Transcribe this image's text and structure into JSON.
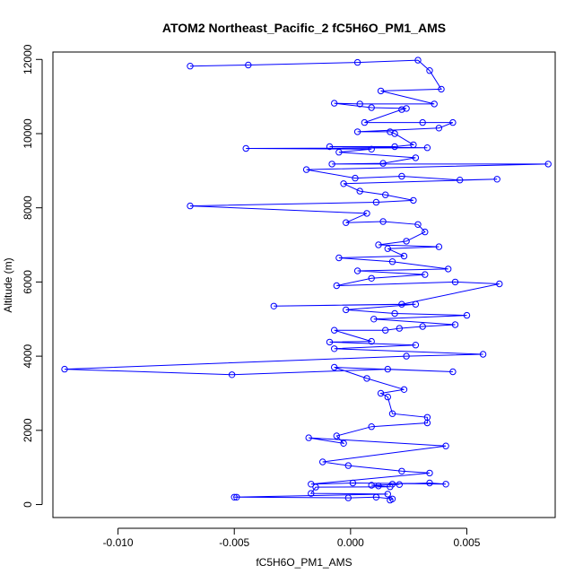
{
  "chart_data": {
    "type": "line",
    "title": "ATOM2 Northeast_Pacific_2 fC5H6O_PM1_AMS",
    "xlabel": "fC5H6O_PM1_AMS",
    "ylabel": "Altitude (m)",
    "xlim": [
      -0.0128,
      0.0088
    ],
    "ylim": [
      -350,
      12200
    ],
    "x_ticks": [
      -0.01,
      -0.005,
      0.0,
      0.005
    ],
    "x_tick_labels": [
      "-0.010",
      "-0.005",
      "0.000",
      "0.005"
    ],
    "y_ticks": [
      0,
      2000,
      4000,
      6000,
      8000,
      10000,
      12000
    ],
    "y_tick_labels": [
      "0",
      "2000",
      "4000",
      "6000",
      "8000",
      "10000",
      "12000"
    ],
    "grid": false,
    "legend": "none",
    "marker": "open-circle",
    "color": "#0000ff",
    "series": [
      {
        "points": [
          [
            -0.0069,
            11820
          ],
          [
            -0.0044,
            11850
          ],
          [
            0.0003,
            11920
          ],
          [
            0.0029,
            11980
          ],
          [
            0.0034,
            11700
          ],
          [
            0.0039,
            11200
          ],
          [
            0.0013,
            11150
          ],
          [
            0.0036,
            10800
          ],
          [
            0.0004,
            10800
          ],
          [
            -0.0007,
            10820
          ],
          [
            0.0009,
            10700
          ],
          [
            0.0024,
            10680
          ],
          [
            0.0022,
            10650
          ],
          [
            0.0006,
            10300
          ],
          [
            0.0031,
            10300
          ],
          [
            0.0044,
            10300
          ],
          [
            0.0038,
            10150
          ],
          [
            0.0003,
            10050
          ],
          [
            0.0017,
            10050
          ],
          [
            0.0019,
            10000
          ],
          [
            0.0027,
            9700
          ],
          [
            0.0019,
            9650
          ],
          [
            -0.0009,
            9650
          ],
          [
            0.0033,
            9620
          ],
          [
            -0.0045,
            9600
          ],
          [
            0.0009,
            9580
          ],
          [
            -0.0005,
            9500
          ],
          [
            0.0028,
            9350
          ],
          [
            0.0014,
            9200
          ],
          [
            -0.0008,
            9180
          ],
          [
            0.0085,
            9180
          ],
          [
            -0.0019,
            9030
          ],
          [
            0.0002,
            8800
          ],
          [
            0.0022,
            8850
          ],
          [
            0.0047,
            8750
          ],
          [
            0.0063,
            8770
          ],
          [
            -0.0003,
            8650
          ],
          [
            0.0004,
            8450
          ],
          [
            0.0015,
            8350
          ],
          [
            0.0027,
            8200
          ],
          [
            0.0011,
            8150
          ],
          [
            -0.0069,
            8050
          ],
          [
            0.0007,
            7850
          ],
          [
            -0.0002,
            7600
          ],
          [
            0.0014,
            7630
          ],
          [
            0.0029,
            7550
          ],
          [
            0.0032,
            7350
          ],
          [
            0.0024,
            7100
          ],
          [
            0.0012,
            7000
          ],
          [
            0.0038,
            6950
          ],
          [
            0.0016,
            6900
          ],
          [
            0.0023,
            6700
          ],
          [
            -0.0005,
            6650
          ],
          [
            0.0018,
            6550
          ],
          [
            0.0042,
            6350
          ],
          [
            0.0003,
            6300
          ],
          [
            0.0032,
            6200
          ],
          [
            0.0009,
            6100
          ],
          [
            -0.0006,
            5900
          ],
          [
            0.0045,
            6000
          ],
          [
            0.0064,
            5950
          ],
          [
            0.0022,
            5400
          ],
          [
            -0.0033,
            5350
          ],
          [
            0.0028,
            5400
          ],
          [
            -0.0002,
            5250
          ],
          [
            0.0019,
            5150
          ],
          [
            0.005,
            5100
          ],
          [
            0.001,
            5000
          ],
          [
            0.0045,
            4850
          ],
          [
            0.0031,
            4800
          ],
          [
            0.0021,
            4750
          ],
          [
            0.0015,
            4700
          ],
          [
            -0.0007,
            4700
          ],
          [
            0.0009,
            4400
          ],
          [
            -0.0009,
            4380
          ],
          [
            0.0028,
            4300
          ],
          [
            -0.0007,
            4200
          ],
          [
            0.0057,
            4050
          ],
          [
            0.0024,
            4000
          ],
          [
            -0.0123,
            3650
          ],
          [
            -0.0051,
            3500
          ],
          [
            0.0016,
            3650
          ],
          [
            0.0044,
            3580
          ],
          [
            -0.0007,
            3700
          ],
          [
            0.0007,
            3400
          ],
          [
            0.0023,
            3100
          ],
          [
            0.0013,
            3000
          ],
          [
            0.0016,
            2900
          ],
          [
            0.0018,
            2450
          ],
          [
            0.0033,
            2350
          ],
          [
            0.0033,
            2200
          ],
          [
            0.0009,
            2100
          ],
          [
            -0.0006,
            1850
          ],
          [
            -0.0003,
            1650
          ],
          [
            -0.0018,
            1800
          ],
          [
            0.0041,
            1580
          ],
          [
            -0.0012,
            1150
          ],
          [
            -0.0001,
            1050
          ],
          [
            0.0022,
            900
          ],
          [
            0.0034,
            850
          ],
          [
            -0.0017,
            550
          ],
          [
            0.0001,
            580
          ],
          [
            0.0041,
            550
          ],
          [
            0.0034,
            580
          ],
          [
            0.0018,
            550
          ],
          [
            0.0021,
            540
          ],
          [
            0.0009,
            520
          ],
          [
            0.0012,
            500
          ],
          [
            0.0017,
            480
          ],
          [
            -0.0015,
            470
          ],
          [
            -0.0017,
            300
          ],
          [
            0.0016,
            280
          ],
          [
            -0.005,
            200
          ],
          [
            -0.0049,
            200
          ],
          [
            -0.0001,
            180
          ],
          [
            0.0011,
            200
          ],
          [
            0.0018,
            150
          ],
          [
            0.0017,
            120
          ]
        ]
      }
    ]
  }
}
